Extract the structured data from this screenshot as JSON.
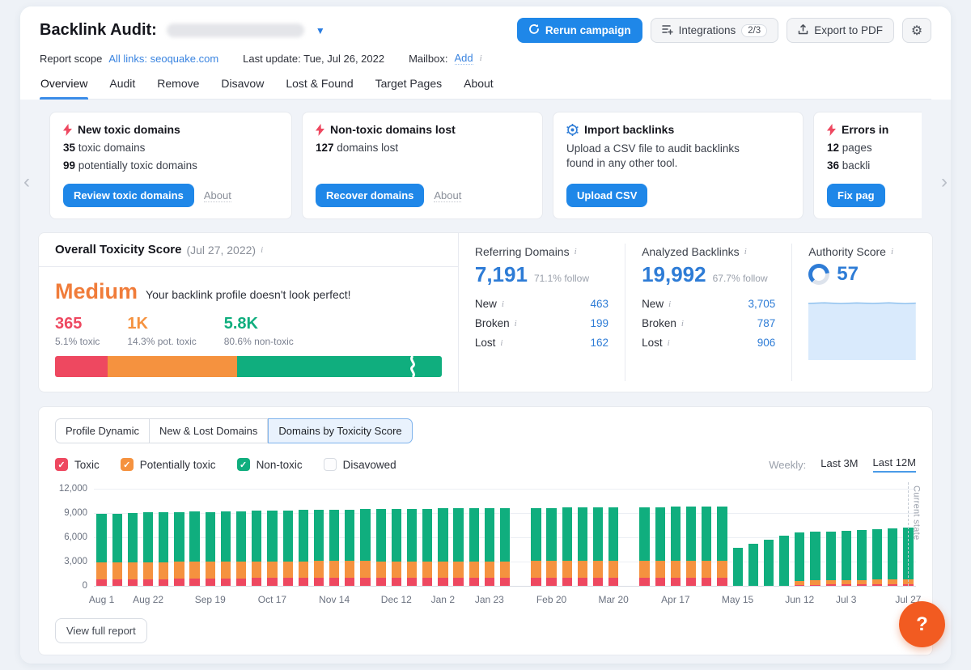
{
  "colors": {
    "toxic": "#ee4860",
    "potentially_toxic": "#f5923f",
    "non_toxic": "#10ae7e",
    "accent_blue": "#1f87e8",
    "number_blue": "#2e7cd6",
    "medium_orange": "#f07c3a",
    "help_orange": "#f25b21"
  },
  "header": {
    "title": "Backlink Audit:",
    "rerun_button": "Rerun campaign",
    "integrations_button": "Integrations",
    "integrations_badge": "2/3",
    "export_button": "Export to PDF",
    "scope_label": "Report scope",
    "scope_link": "All links: seoquake.com",
    "last_update": "Last update: Tue, Jul 26, 2022",
    "mailbox_label": "Mailbox:",
    "mailbox_link": "Add"
  },
  "tabs": {
    "items": [
      {
        "label": "Overview"
      },
      {
        "label": "Audit"
      },
      {
        "label": "Remove"
      },
      {
        "label": "Disavow"
      },
      {
        "label": "Lost & Found"
      },
      {
        "label": "Target Pages"
      },
      {
        "label": "About"
      }
    ]
  },
  "cards": [
    {
      "title": "New toxic domains",
      "stat1_value": "35",
      "stat1_label": "toxic domains",
      "stat2_value": "99",
      "stat2_label": "potentially toxic domains",
      "button": "Review toxic domains",
      "link": "About"
    },
    {
      "title": "Non-toxic domains lost",
      "stat1_value": "127",
      "stat1_label": "domains lost",
      "button": "Recover domains",
      "link": "About"
    },
    {
      "title": "Import backlinks",
      "description": "Upload a CSV file to audit backlinks found in any other tool.",
      "button": "Upload CSV"
    },
    {
      "title": "Errors in",
      "stat1_value": "12",
      "stat1_label": "pages",
      "stat2_value": "36",
      "stat2_label": "backli",
      "button": "Fix pag"
    }
  ],
  "toxicity": {
    "title": "Overall Toxicity Score",
    "date": "(Jul 27, 2022)",
    "level": "Medium",
    "message": "Your backlink profile doesn't look perfect!",
    "items": [
      {
        "value": "365",
        "label": "5.1% toxic",
        "color": "#ee4860"
      },
      {
        "value": "1K",
        "label": "14.3% pot. toxic",
        "color": "#f5923f"
      },
      {
        "value": "5.8K",
        "label": "80.6% non-toxic",
        "color": "#10ae7e"
      }
    ],
    "bar_segments": [
      {
        "color": "#ee4860",
        "width_pct": 13.5
      },
      {
        "color": "#f5923f",
        "width_pct": 33.5
      },
      {
        "color": "#10ae7e",
        "width_pct": 53
      }
    ]
  },
  "stats": [
    {
      "title": "Referring Domains",
      "value": "7,191",
      "follow": "71.1% follow",
      "rows": [
        {
          "label": "New",
          "value": "463"
        },
        {
          "label": "Broken",
          "value": "199"
        },
        {
          "label": "Lost",
          "value": "162"
        }
      ]
    },
    {
      "title": "Analyzed Backlinks",
      "value": "19,992",
      "follow": "67.7% follow",
      "rows": [
        {
          "label": "New",
          "value": "3,705"
        },
        {
          "label": "Broken",
          "value": "787"
        },
        {
          "label": "Lost",
          "value": "906"
        }
      ]
    },
    {
      "title": "Authority Score",
      "value": "57"
    }
  ],
  "chart_section": {
    "tabs": [
      {
        "label": "Profile Dynamic"
      },
      {
        "label": "New & Lost Domains"
      },
      {
        "label": "Domains by Toxicity Score"
      }
    ],
    "legend": [
      {
        "label": "Toxic",
        "color": "#ee4860",
        "checked": true
      },
      {
        "label": "Potentially toxic",
        "color": "#f5923f",
        "checked": true
      },
      {
        "label": "Non-toxic",
        "color": "#10ae7e",
        "checked": true
      },
      {
        "label": "Disavowed",
        "color": "#ffffff",
        "checked": false
      }
    ],
    "period_label": "Weekly:",
    "ranges": [
      {
        "label": "Last 3M"
      },
      {
        "label": "Last 12M"
      }
    ],
    "current_state_label": "Current state",
    "footer_button": "View full report"
  },
  "chart_data": {
    "type": "bar",
    "stacked": true,
    "title": "Domains by Toxicity Score (weekly, Last 12M)",
    "ylim": [
      0,
      12000
    ],
    "yticks_top_down": [
      "12,000",
      "9,000",
      "6,000",
      "3,000",
      "0"
    ],
    "series_order": [
      "toxic",
      "potentially_toxic",
      "non_toxic"
    ],
    "series_colors": {
      "toxic": "#ee4860",
      "potentially_toxic": "#f5923f",
      "non_toxic": "#10ae7e"
    },
    "points_total_toxic_pot": [
      [
        8900,
        800,
        2100
      ],
      [
        8950,
        800,
        2100
      ],
      [
        9000,
        820,
        2100
      ],
      [
        9100,
        850,
        2100
      ],
      [
        9100,
        850,
        2100
      ],
      [
        9150,
        900,
        2100
      ],
      [
        9200,
        900,
        2100
      ],
      [
        9150,
        950,
        2100
      ],
      [
        9250,
        950,
        2050
      ],
      [
        9250,
        950,
        2050
      ],
      [
        9300,
        1000,
        2050
      ],
      [
        9300,
        1000,
        2050
      ],
      [
        9350,
        1000,
        2050
      ],
      [
        9400,
        1000,
        2050
      ],
      [
        9450,
        1050,
        2050
      ],
      [
        9450,
        1050,
        2050
      ],
      [
        9450,
        1050,
        2050
      ],
      [
        9500,
        1050,
        2050
      ],
      [
        9500,
        1050,
        2000
      ],
      [
        9500,
        1050,
        2000
      ],
      [
        9550,
        1050,
        2000
      ],
      [
        9550,
        1050,
        2000
      ],
      [
        9600,
        1000,
        2000
      ],
      [
        9600,
        1000,
        2000
      ],
      [
        9600,
        1000,
        2050
      ],
      [
        9650,
        1000,
        2050
      ],
      [
        9650,
        1000,
        2050
      ],
      null,
      [
        9650,
        1050,
        2050
      ],
      [
        9650,
        1050,
        2050
      ],
      [
        9700,
        1050,
        2050
      ],
      [
        9700,
        1050,
        2050
      ],
      [
        9700,
        1050,
        2050
      ],
      [
        9700,
        1050,
        2050
      ],
      null,
      [
        9750,
        1000,
        2100
      ],
      [
        9750,
        1000,
        2100
      ],
      [
        9800,
        1000,
        2100
      ],
      [
        9800,
        1000,
        2100
      ],
      [
        9800,
        1050,
        2100
      ],
      [
        9850,
        1050,
        2100
      ],
      [
        4700,
        0,
        0
      ],
      [
        5200,
        0,
        0
      ],
      [
        5700,
        0,
        0
      ],
      [
        6200,
        0,
        0
      ],
      [
        6600,
        150,
        500
      ],
      [
        6700,
        150,
        550
      ],
      [
        6750,
        180,
        550
      ],
      [
        6800,
        180,
        550
      ],
      [
        6900,
        200,
        550
      ],
      [
        7000,
        200,
        600
      ],
      [
        7100,
        200,
        600
      ],
      [
        7250,
        200,
        600
      ]
    ],
    "x_labels": [
      {
        "i": 0,
        "t": "Aug 1"
      },
      {
        "i": 3,
        "t": "Aug 22"
      },
      {
        "i": 7,
        "t": "Sep 19"
      },
      {
        "i": 11,
        "t": "Oct 17"
      },
      {
        "i": 15,
        "t": "Nov 14"
      },
      {
        "i": 19,
        "t": "Dec 12"
      },
      {
        "i": 22,
        "t": "Jan 2"
      },
      {
        "i": 25,
        "t": "Jan 23"
      },
      {
        "i": 29,
        "t": "Feb 20"
      },
      {
        "i": 33,
        "t": "Mar 20"
      },
      {
        "i": 37,
        "t": "Apr 17"
      },
      {
        "i": 41,
        "t": "May 15"
      },
      {
        "i": 45,
        "t": "Jun 12"
      },
      {
        "i": 48,
        "t": "Jul 3"
      },
      {
        "i": 52,
        "t": "Jul 27"
      }
    ],
    "grid": true,
    "legend_position": "top-left"
  },
  "help": {
    "label": "?"
  }
}
